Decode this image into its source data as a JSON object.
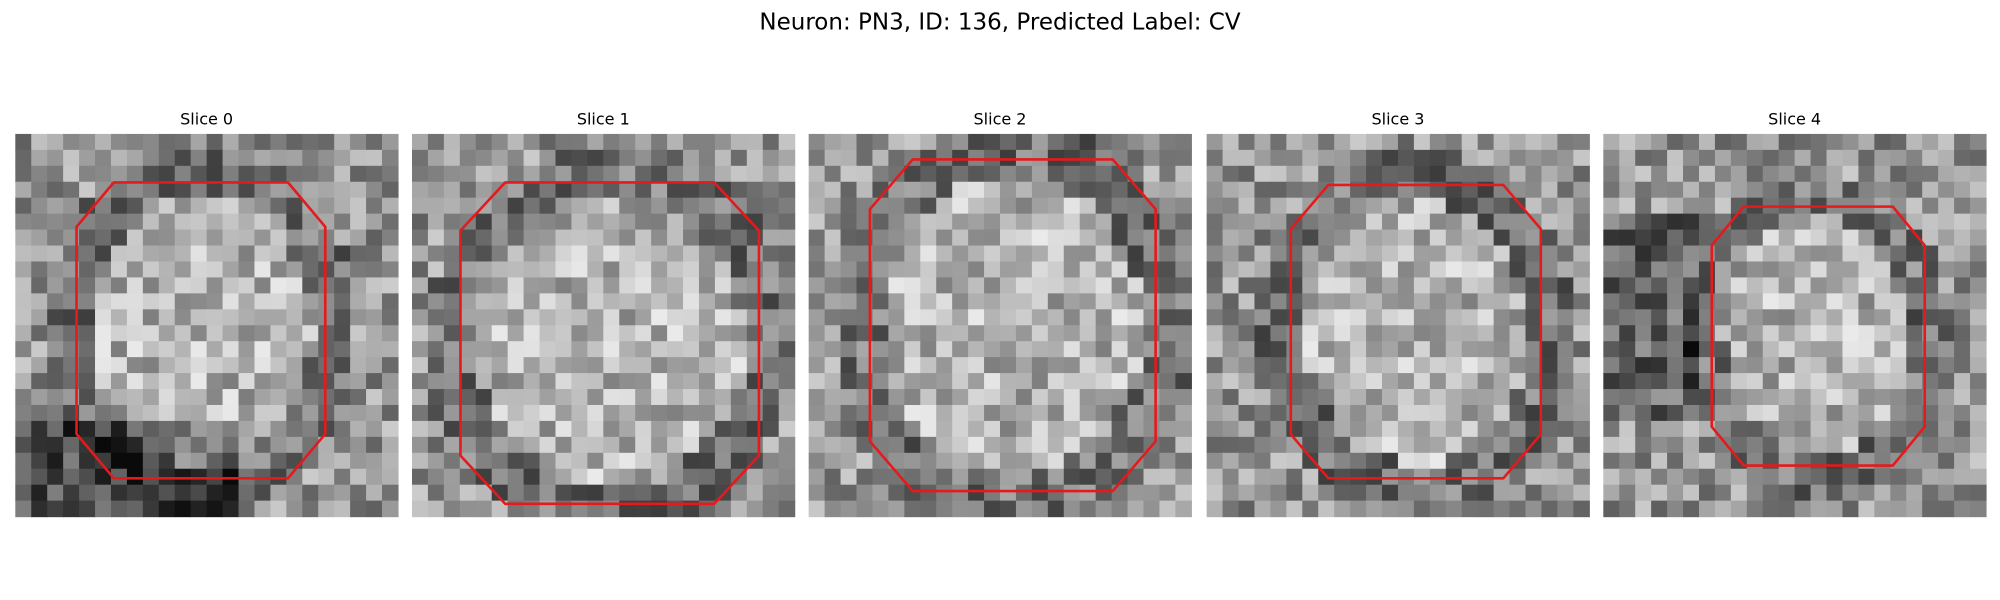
{
  "title": "Neuron: PN3, ID: 136, Predicted Label: CV",
  "panels": [
    {
      "title": "Slice 0"
    },
    {
      "title": "Slice 1"
    },
    {
      "title": "Slice 2"
    },
    {
      "title": "Slice 3"
    },
    {
      "title": "Slice 4"
    }
  ]
}
